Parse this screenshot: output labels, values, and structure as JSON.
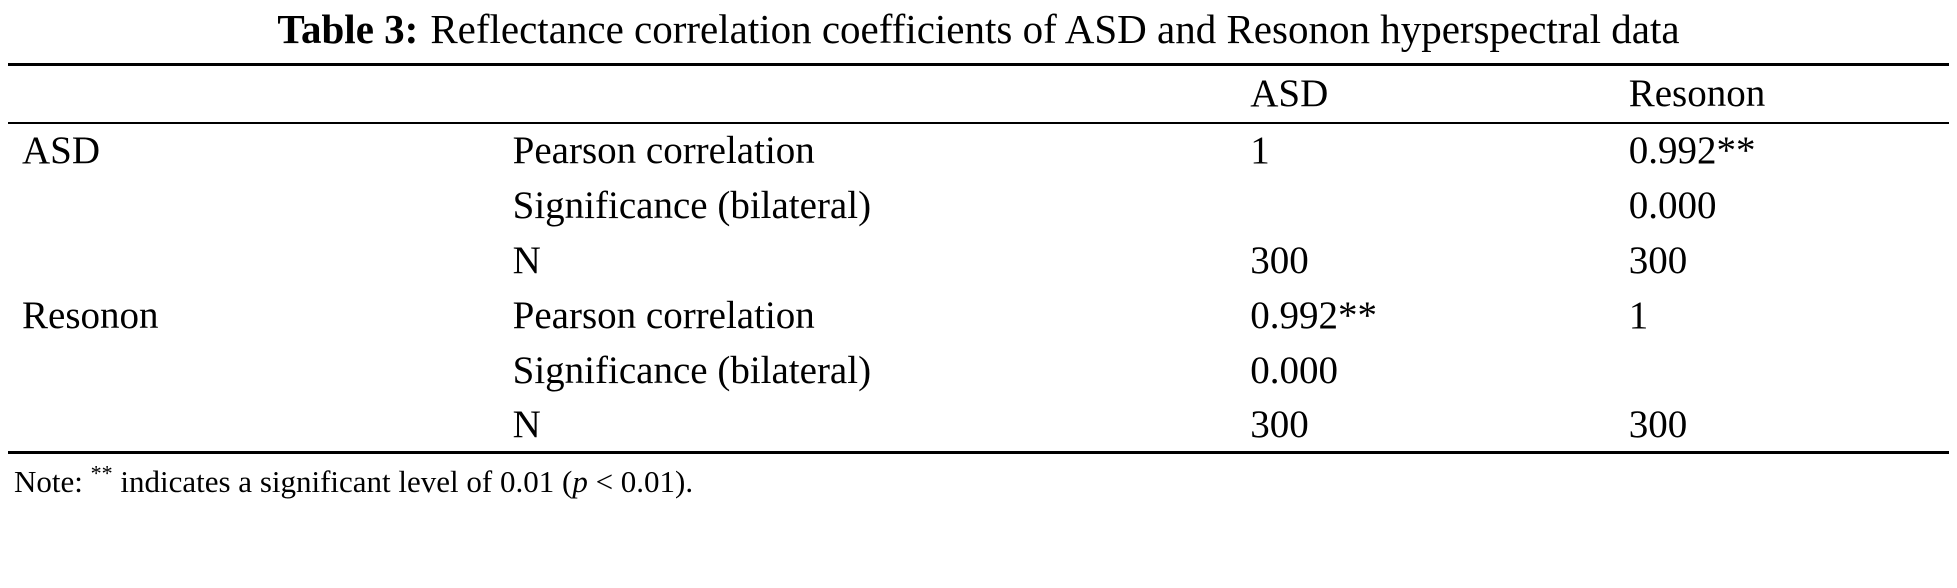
{
  "title": {
    "label": "Table 3:",
    "text": "Reflectance correlation coefficients of ASD and Resonon hyperspectral data"
  },
  "table": {
    "headers": [
      "",
      "",
      "ASD",
      "Resonon"
    ],
    "rows": [
      {
        "group": "ASD",
        "stat": "Pearson correlation",
        "asd": "1",
        "resonon": "0.992**"
      },
      {
        "group": "",
        "stat": "Significance (bilateral)",
        "asd": "",
        "resonon": "0.000"
      },
      {
        "group": "",
        "stat": "N",
        "asd": "300",
        "resonon": "300"
      },
      {
        "group": "Resonon",
        "stat": "Pearson correlation",
        "asd": "0.992**",
        "resonon": "1"
      },
      {
        "group": "",
        "stat": "Significance (bilateral)",
        "asd": "0.000",
        "resonon": ""
      },
      {
        "group": "",
        "stat": "N",
        "asd": "300",
        "resonon": "300"
      }
    ]
  },
  "note": {
    "prefix": "Note: ",
    "stars": "**",
    "middle": " indicates a significant level of 0.01 (",
    "p_symbol": "p",
    "suffix": " < 0.01)."
  }
}
